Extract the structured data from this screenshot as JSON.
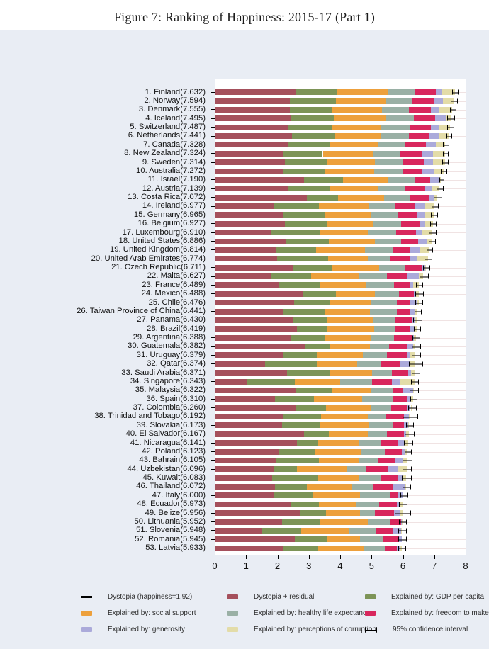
{
  "title": "Figure 7: Ranking of Happiness: 2015-17 (Part 1)",
  "chart_data": {
    "type": "bar",
    "orientation": "horizontal",
    "stacked": true,
    "title": "Figure 7: Ranking of Happiness: 2015-17 (Part 1)",
    "xlim": [
      0,
      8
    ],
    "x_ticks": [
      0,
      1,
      2,
      3,
      4,
      5,
      6,
      7,
      8
    ],
    "grid": "light horizontal row guides",
    "dystopia_reference_line": 1.92,
    "segment_keys": [
      "residual",
      "gdp",
      "social",
      "health",
      "freedom",
      "generosity",
      "corruption"
    ],
    "segment_labels": {
      "residual": "Dystopia + residual",
      "gdp": "Explained by: GDP per capita",
      "social": "Explained by: social support",
      "health": "Explained by: healthy life expectancy",
      "freedom": "Explained by: freedom to make life choices",
      "generosity": "Explained by: generosity",
      "corruption": "Explained by: perceptions of corruption"
    },
    "colors": {
      "residual": "#a5505c",
      "gdp": "#7d9457",
      "social": "#eda03c",
      "health": "#9ab0a5",
      "freedom": "#d8275d",
      "generosity": "#abaada",
      "corruption": "#e3dca8",
      "ci": "#000000",
      "dystopia_line": "#000000",
      "page_bg": "#e9edf4",
      "plot_bg": "#ffffff"
    },
    "countries": [
      {
        "label": "1. Finland(7.632)",
        "score": 7.632,
        "ci": 0.08,
        "values": [
          2.585,
          1.305,
          1.592,
          0.874,
          0.681,
          0.202,
          0.393
        ]
      },
      {
        "label": "2. Norway(7.594)",
        "score": 7.594,
        "ci": 0.08,
        "values": [
          2.383,
          1.456,
          1.582,
          0.861,
          0.686,
          0.286,
          0.34
        ]
      },
      {
        "label": "3. Denmark(7.555)",
        "score": 7.555,
        "ci": 0.08,
        "values": [
          2.371,
          1.351,
          1.59,
          0.868,
          0.683,
          0.284,
          0.408
        ]
      },
      {
        "label": "4. Iceland(7.495)",
        "score": 7.495,
        "ci": 0.1,
        "values": [
          2.426,
          1.343,
          1.644,
          0.914,
          0.677,
          0.353,
          0.138
        ]
      },
      {
        "label": "5. Switzerland(7.487)",
        "score": 7.487,
        "ci": 0.09,
        "values": [
          2.318,
          1.42,
          1.549,
          0.927,
          0.66,
          0.256,
          0.357
        ]
      },
      {
        "label": "6. Netherlands(7.441)",
        "score": 7.441,
        "ci": 0.07,
        "values": [
          2.448,
          1.361,
          1.488,
          0.878,
          0.638,
          0.333,
          0.295
        ]
      },
      {
        "label": "7. Canada(7.328)",
        "score": 7.328,
        "ci": 0.08,
        "values": [
          2.305,
          1.33,
          1.532,
          0.896,
          0.653,
          0.321,
          0.291
        ]
      },
      {
        "label": "8. New Zealand(7.324)",
        "score": 7.324,
        "ci": 0.07,
        "values": [
          2.156,
          1.268,
          1.601,
          0.876,
          0.669,
          0.365,
          0.389
        ]
      },
      {
        "label": "9. Sweden(7.314)",
        "score": 7.314,
        "ci": 0.08,
        "values": [
          2.218,
          1.355,
          1.501,
          0.913,
          0.659,
          0.285,
          0.383
        ]
      },
      {
        "label": "10. Australia(7.272)",
        "score": 7.272,
        "ci": 0.08,
        "values": [
          2.139,
          1.34,
          1.573,
          0.91,
          0.647,
          0.361,
          0.302
        ]
      },
      {
        "label": "11. Israel(7.190)",
        "score": 7.19,
        "ci": 0.06,
        "values": [
          2.817,
          1.244,
          1.433,
          0.888,
          0.464,
          0.262,
          0.082
        ]
      },
      {
        "label": "12. Austria(7.139)",
        "score": 7.139,
        "ci": 0.09,
        "values": [
          2.32,
          1.341,
          1.504,
          0.891,
          0.617,
          0.242,
          0.224
        ]
      },
      {
        "label": "13. Costa Rica(7.072)",
        "score": 7.072,
        "ci": 0.11,
        "values": [
          2.91,
          1.01,
          1.459,
          0.817,
          0.632,
          0.143,
          0.101
        ]
      },
      {
        "label": "14. Ireland(6.977)",
        "score": 6.977,
        "ci": 0.09,
        "values": [
          1.843,
          1.448,
          1.583,
          0.876,
          0.614,
          0.307,
          0.306
        ]
      },
      {
        "label": "15. Germany(6.965)",
        "score": 6.965,
        "ci": 0.09,
        "values": [
          2.151,
          1.34,
          1.474,
          0.861,
          0.586,
          0.273,
          0.28
        ]
      },
      {
        "label": "16. Belgium(6.927)",
        "score": 6.927,
        "ci": 0.09,
        "values": [
          2.215,
          1.324,
          1.483,
          0.894,
          0.583,
          0.188,
          0.24
        ]
      },
      {
        "label": "17. Luxembourg(6.910)",
        "score": 6.91,
        "ci": 0.1,
        "values": [
          1.769,
          1.576,
          1.52,
          0.896,
          0.632,
          0.196,
          0.321
        ]
      },
      {
        "label": "18. United States(6.886)",
        "score": 6.886,
        "ci": 0.09,
        "values": [
          2.227,
          1.398,
          1.471,
          0.819,
          0.547,
          0.291,
          0.133
        ]
      },
      {
        "label": "19. United Kingdom(6.814)",
        "score": 6.814,
        "ci": 0.09,
        "values": [
          1.912,
          1.301,
          1.559,
          0.883,
          0.533,
          0.354,
          0.272
        ]
      },
      {
        "label": "20. United Arab Emirates(6.774)",
        "score": 6.774,
        "ci": 0.1,
        "values": [
          1.962,
          1.626,
          1.266,
          0.726,
          0.608,
          0.262,
          0.324
        ]
      },
      {
        "label": "21. Czech Republic(6.711)",
        "score": 6.711,
        "ci": 0.09,
        "values": [
          2.475,
          1.256,
          1.49,
          0.832,
          0.521,
          0.103,
          0.034
        ]
      },
      {
        "label": "22. Malta(6.627)",
        "score": 6.627,
        "ci": 0.12,
        "values": [
          1.785,
          1.27,
          1.525,
          0.884,
          0.645,
          0.376,
          0.142
        ]
      },
      {
        "label": "23. France(6.489)",
        "score": 6.489,
        "ci": 0.09,
        "values": [
          2.028,
          1.293,
          1.466,
          0.908,
          0.52,
          0.098,
          0.176
        ]
      },
      {
        "label": "24. Mexico(6.488)",
        "score": 6.488,
        "ci": 0.11,
        "values": [
          2.794,
          1.038,
          1.252,
          0.761,
          0.479,
          0.069,
          0.095
        ]
      },
      {
        "label": "25. Chile(6.476)",
        "score": 6.476,
        "ci": 0.11,
        "values": [
          2.517,
          1.131,
          1.331,
          0.808,
          0.431,
          0.197,
          0.061
        ]
      },
      {
        "label": "26. Taiwan Province of China(6.441)",
        "score": 6.441,
        "ci": 0.09,
        "values": [
          2.136,
          1.365,
          1.436,
          0.857,
          0.418,
          0.151,
          0.078
        ]
      },
      {
        "label": "27. Panama(6.430)",
        "score": 6.43,
        "ci": 0.12,
        "values": [
          2.472,
          1.072,
          1.463,
          0.71,
          0.55,
          0.109,
          0.054
        ]
      },
      {
        "label": "28. Brazil(6.419)",
        "score": 6.419,
        "ci": 0.1,
        "values": [
          2.593,
          0.986,
          1.474,
          0.675,
          0.493,
          0.11,
          0.088
        ]
      },
      {
        "label": "29. Argentina(6.388)",
        "score": 6.388,
        "ci": 0.1,
        "values": [
          2.417,
          1.073,
          1.468,
          0.744,
          0.57,
          0.062,
          0.054
        ]
      },
      {
        "label": "30. Guatemala(6.382)",
        "score": 6.382,
        "ci": 0.13,
        "values": [
          2.87,
          0.781,
          1.269,
          0.608,
          0.604,
          0.179,
          0.071
        ]
      },
      {
        "label": "31. Uruguay(6.379)",
        "score": 6.379,
        "ci": 0.12,
        "values": [
          2.146,
          1.093,
          1.459,
          0.771,
          0.625,
          0.13,
          0.155
        ]
      },
      {
        "label": "32. Qatar(6.374)",
        "score": 6.374,
        "ci": 0.2,
        "values": [
          1.573,
          1.649,
          1.303,
          0.748,
          0.604,
          0.33,
          0.167
        ]
      },
      {
        "label": "33. Saudi Arabia(6.371)",
        "score": 6.371,
        "ci": 0.12,
        "values": [
          2.289,
          1.379,
          1.331,
          0.633,
          0.509,
          0.098,
          0.132
        ]
      },
      {
        "label": "34. Singapore(6.343)",
        "score": 6.343,
        "ci": 0.1,
        "values": [
          1.006,
          1.529,
          1.451,
          1.008,
          0.631,
          0.261,
          0.457
        ]
      },
      {
        "label": "35. Malaysia(6.322)",
        "score": 6.322,
        "ci": 0.12,
        "values": [
          2.551,
          1.161,
          1.258,
          0.669,
          0.356,
          0.311,
          0.016
        ]
      },
      {
        "label": "36. Spain(6.310)",
        "score": 6.31,
        "ci": 0.09,
        "values": [
          1.891,
          1.251,
          1.538,
          0.965,
          0.449,
          0.142,
          0.074
        ]
      },
      {
        "label": "37. Colombia(6.260)",
        "score": 6.26,
        "ci": 0.11,
        "values": [
          2.562,
          0.96,
          1.439,
          0.635,
          0.531,
          0.099,
          0.034
        ]
      },
      {
        "label": "38. Trinidad and Tobago(6.192)",
        "score": 6.192,
        "ci": 0.22,
        "values": [
          2.148,
          1.223,
          1.492,
          0.564,
          0.575,
          0.171,
          0.019
        ]
      },
      {
        "label": "39. Slovakia(6.173)",
        "score": 6.173,
        "ci": 0.1,
        "values": [
          2.126,
          1.21,
          1.537,
          0.776,
          0.354,
          0.146,
          0.024
        ]
      },
      {
        "label": "40. El Salvador(6.167)",
        "score": 6.167,
        "ci": 0.13,
        "values": [
          2.818,
          0.794,
          1.242,
          0.622,
          0.526,
          0.083,
          0.082
        ]
      },
      {
        "label": "41. Nicaragua(6.141)",
        "score": 6.141,
        "ci": 0.13,
        "values": [
          2.61,
          0.668,
          1.3,
          0.7,
          0.527,
          0.208,
          0.128
        ]
      },
      {
        "label": "42. Poland(6.123)",
        "score": 6.123,
        "ci": 0.1,
        "values": [
          2.0,
          1.176,
          1.448,
          0.781,
          0.546,
          0.108,
          0.064
        ]
      },
      {
        "label": "43. Bahrain(6.105)",
        "score": 6.105,
        "ci": 0.14,
        "values": [
          1.939,
          1.366,
          1.26,
          0.639,
          0.536,
          0.255,
          0.11
        ]
      },
      {
        "label": "44. Uzbekistan(6.096)",
        "score": 6.096,
        "ci": 0.12,
        "values": [
          1.877,
          0.719,
          1.584,
          0.605,
          0.724,
          0.328,
          0.259
        ]
      },
      {
        "label": "45. Kuwait(6.083)",
        "score": 6.083,
        "ci": 0.13,
        "values": [
          1.806,
          1.474,
          1.301,
          0.675,
          0.554,
          0.167,
          0.106
        ]
      },
      {
        "label": "46. Thailand(6.072)",
        "score": 6.072,
        "ci": 0.11,
        "values": [
          1.902,
          1.016,
          1.417,
          0.707,
          0.637,
          0.364,
          0.029
        ]
      },
      {
        "label": "47. Italy(6.000)",
        "score": 6.0,
        "ci": 0.1,
        "values": [
          1.843,
          1.264,
          1.501,
          0.946,
          0.281,
          0.137,
          0.028
        ]
      },
      {
        "label": "48. Ecuador(5.973)",
        "score": 5.973,
        "ci": 0.11,
        "values": [
          2.395,
          0.896,
          1.212,
          0.713,
          0.561,
          0.103,
          0.093
        ]
      },
      {
        "label": "49. Belize(5.956)",
        "score": 5.956,
        "ci": 0.23,
        "values": [
          2.709,
          0.807,
          1.101,
          0.474,
          0.593,
          0.183,
          0.089
        ]
      },
      {
        "label": "50. Lithuania(5.952)",
        "score": 5.952,
        "ci": 0.1,
        "values": [
          2.13,
          1.197,
          1.527,
          0.716,
          0.35,
          0.026,
          0.006
        ]
      },
      {
        "label": "51. Slovenia(5.948)",
        "score": 5.948,
        "ci": 0.11,
        "values": [
          1.487,
          1.258,
          1.523,
          0.842,
          0.564,
          0.244,
          0.03
        ]
      },
      {
        "label": "52. Romania(5.945)",
        "score": 5.945,
        "ci": 0.11,
        "values": [
          2.521,
          1.054,
          1.042,
          0.731,
          0.509,
          0.087,
          0.001
        ]
      },
      {
        "label": "53. Latvia(5.933)",
        "score": 5.933,
        "ci": 0.1,
        "values": [
          2.139,
          1.148,
          1.454,
          0.671,
          0.363,
          0.092,
          0.066
        ]
      }
    ]
  },
  "legend": {
    "rows": [
      [
        {
          "swatch": "line",
          "label": "Dystopia (happiness=1.92)"
        },
        {
          "swatch": "residual",
          "label": "Dystopia + residual"
        },
        {
          "swatch": "gdp",
          "label": "Explained by: GDP per capita"
        }
      ],
      [
        {
          "swatch": "social",
          "label": "Explained by: social support"
        },
        {
          "swatch": "health",
          "label": "Explained by: healthy life expectancy"
        },
        {
          "swatch": "freedom",
          "label": "Explained by: freedom to make life choices"
        }
      ],
      [
        {
          "swatch": "generosity",
          "label": "Explained by: generosity"
        },
        {
          "swatch": "corruption",
          "label": "Explained by: perceptions of corruption"
        },
        {
          "swatch": "errbar",
          "label": "95% confidence interval"
        }
      ]
    ]
  }
}
